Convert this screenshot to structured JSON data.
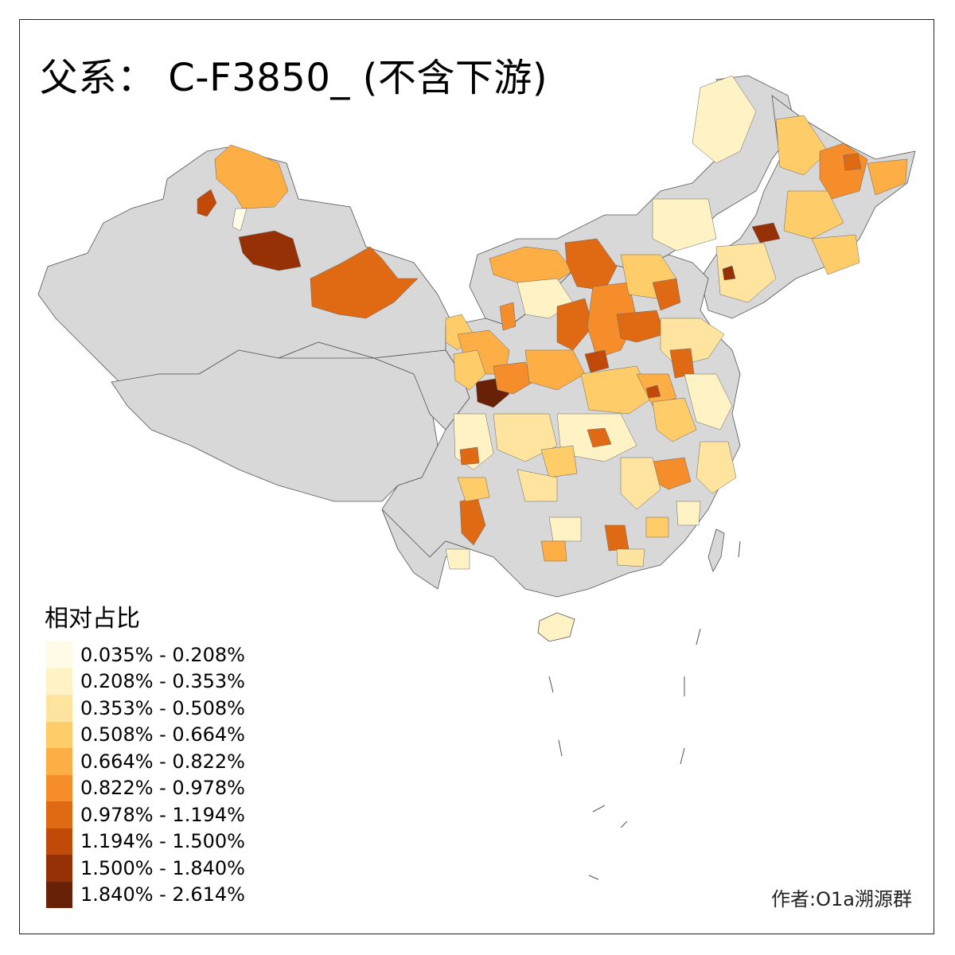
{
  "title": "父系： C-F3850_ (不含下游)",
  "legend": {
    "title": "相对占比",
    "classes": [
      {
        "label": "0.035% - 0.208%",
        "color": "#fffbe6"
      },
      {
        "label": "0.208% - 0.353%",
        "color": "#fff2c4"
      },
      {
        "label": "0.353% - 0.508%",
        "color": "#fee49e"
      },
      {
        "label": "0.508% - 0.664%",
        "color": "#fecd6a"
      },
      {
        "label": "0.664% - 0.822%",
        "color": "#fdae45"
      },
      {
        "label": "0.822% - 0.978%",
        "color": "#f58d2a"
      },
      {
        "label": "0.978% - 1.194%",
        "color": "#e06a14"
      },
      {
        "label": "1.194% - 1.500%",
        "color": "#c24a08"
      },
      {
        "label": "1.500% - 1.840%",
        "color": "#963005"
      },
      {
        "label": "1.840% - 2.614%",
        "color": "#682106"
      }
    ]
  },
  "nodata_color": "#d8d8d8",
  "credit": "作者:O1a溯源群"
}
